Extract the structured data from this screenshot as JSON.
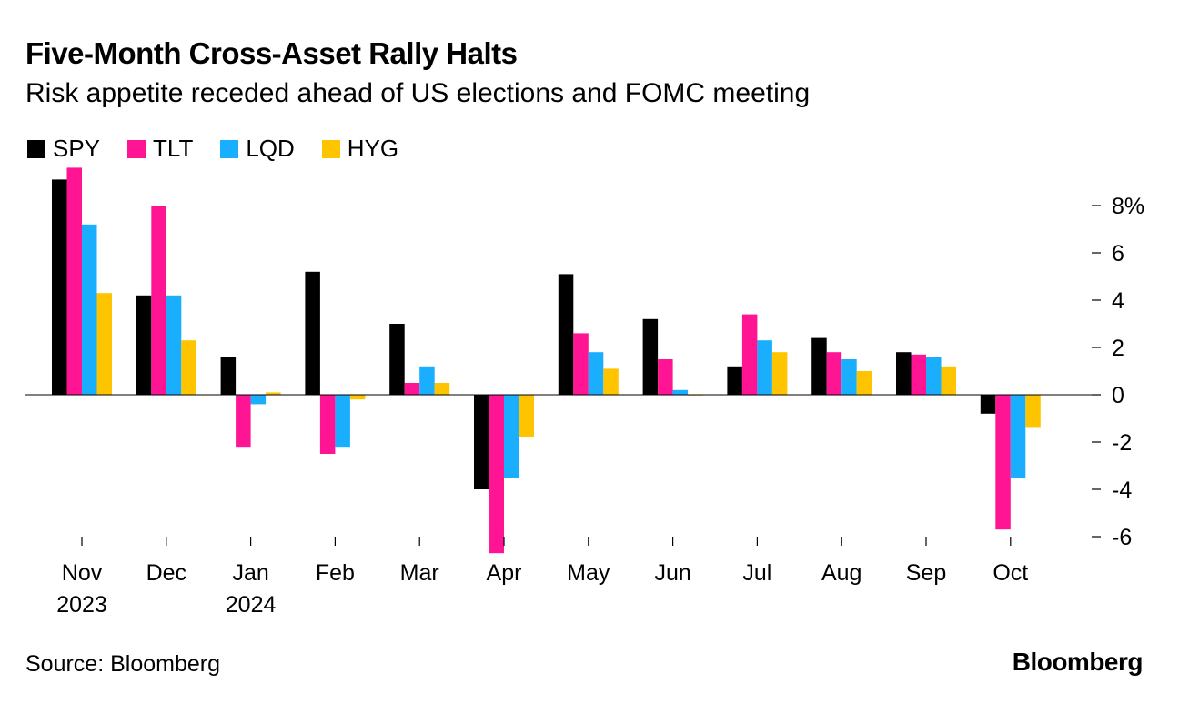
{
  "title": "Five-Month Cross-Asset Rally Halts",
  "subtitle": "Risk appetite receded ahead of US elections and FOMC meeting",
  "source": "Source: Bloomberg",
  "brand": "Bloomberg",
  "chart_data": {
    "type": "bar",
    "categories": [
      "Nov",
      "Dec",
      "Jan",
      "Feb",
      "Mar",
      "Apr",
      "May",
      "Jun",
      "Jul",
      "Aug",
      "Sep",
      "Oct"
    ],
    "category_sublabels": [
      "2023",
      "",
      "2024",
      "",
      "",
      "",
      "",
      "",
      "",
      "",
      "",
      ""
    ],
    "series": [
      {
        "name": "SPY",
        "color": "#000000",
        "values": [
          9.1,
          4.2,
          1.6,
          5.2,
          3.0,
          -4.0,
          5.1,
          3.2,
          1.2,
          2.4,
          1.8,
          -0.8
        ]
      },
      {
        "name": "TLT",
        "color": "#ff1493",
        "values": [
          9.6,
          8.0,
          -2.2,
          -2.5,
          0.5,
          -6.7,
          2.6,
          1.5,
          3.4,
          1.8,
          1.7,
          -5.7
        ]
      },
      {
        "name": "LQD",
        "color": "#1aaeff",
        "values": [
          7.2,
          4.2,
          -0.4,
          -2.2,
          1.2,
          -3.5,
          1.8,
          0.2,
          2.3,
          1.5,
          1.6,
          -3.5
        ]
      },
      {
        "name": "HYG",
        "color": "#ffc400",
        "values": [
          4.3,
          2.3,
          0.1,
          -0.2,
          0.5,
          -1.8,
          1.1,
          0.0,
          1.8,
          1.0,
          1.2,
          -1.4
        ]
      }
    ],
    "yticks": [
      8,
      6,
      4,
      2,
      0,
      -2,
      -4,
      -6
    ],
    "ytick_labels": [
      "8%",
      "6",
      "4",
      "2",
      "0",
      "-2",
      "-4",
      "-6"
    ],
    "ylim": [
      -7,
      10
    ],
    "xlabel": "",
    "ylabel": "",
    "legend_position": "top-left"
  }
}
